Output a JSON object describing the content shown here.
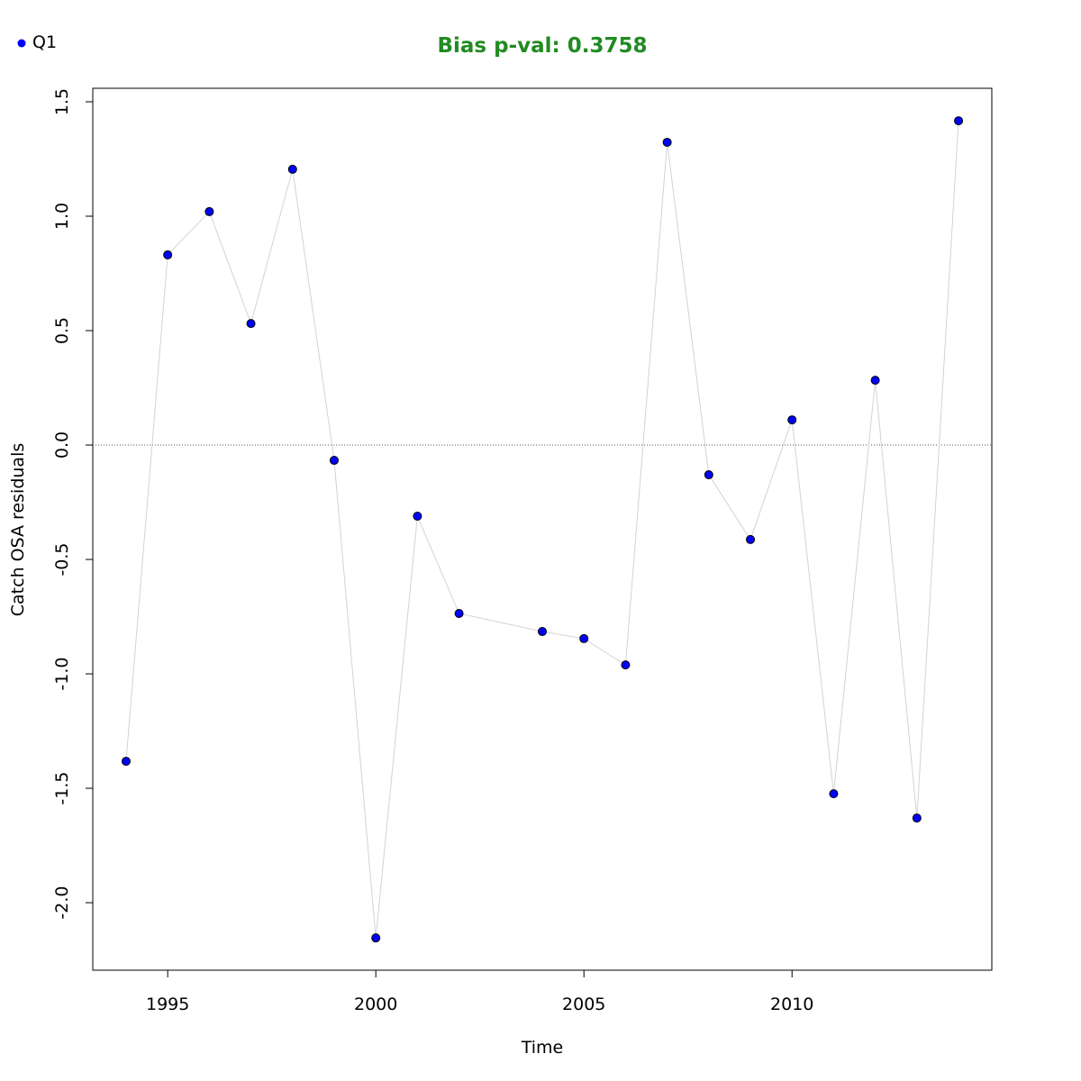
{
  "chart_data": {
    "type": "line",
    "title": "Bias p-val: 0.3758",
    "title_color": "#228b22",
    "x_label": "Time",
    "y_label": "Catch OSA residuals",
    "x": [
      1994,
      1995,
      1996,
      1997,
      1998,
      1999,
      2000,
      2001,
      2002,
      2004,
      2005,
      2006,
      2007,
      2008,
      2009,
      2010,
      2011,
      2012,
      2013,
      2014
    ],
    "series": [
      {
        "name": "Q1",
        "color": "#0000ff",
        "line_color": "#d3d3d3",
        "values": [
          -1.382,
          0.831,
          1.02,
          0.531,
          1.205,
          -0.067,
          -2.154,
          -0.311,
          -0.736,
          -0.815,
          -0.846,
          -0.961,
          1.323,
          -0.13,
          -0.413,
          0.11,
          -1.524,
          0.283,
          -1.63,
          1.417
        ]
      }
    ],
    "xlim": [
      1993.2,
      2014.8
    ],
    "ylim": [
      -2.295,
      1.559
    ],
    "xticks": [
      1995,
      2000,
      2005,
      2010
    ],
    "yticks": [
      {
        "value": -2.0,
        "label": "-2.0"
      },
      -1.5,
      {
        "value": -1.0,
        "label": "-1.0"
      },
      -0.5,
      {
        "value": 0.0,
        "label": "0.0"
      },
      0.5,
      {
        "value": 1.0,
        "label": "1.0"
      },
      1.5
    ],
    "hline": 0,
    "legend": "top-left"
  }
}
